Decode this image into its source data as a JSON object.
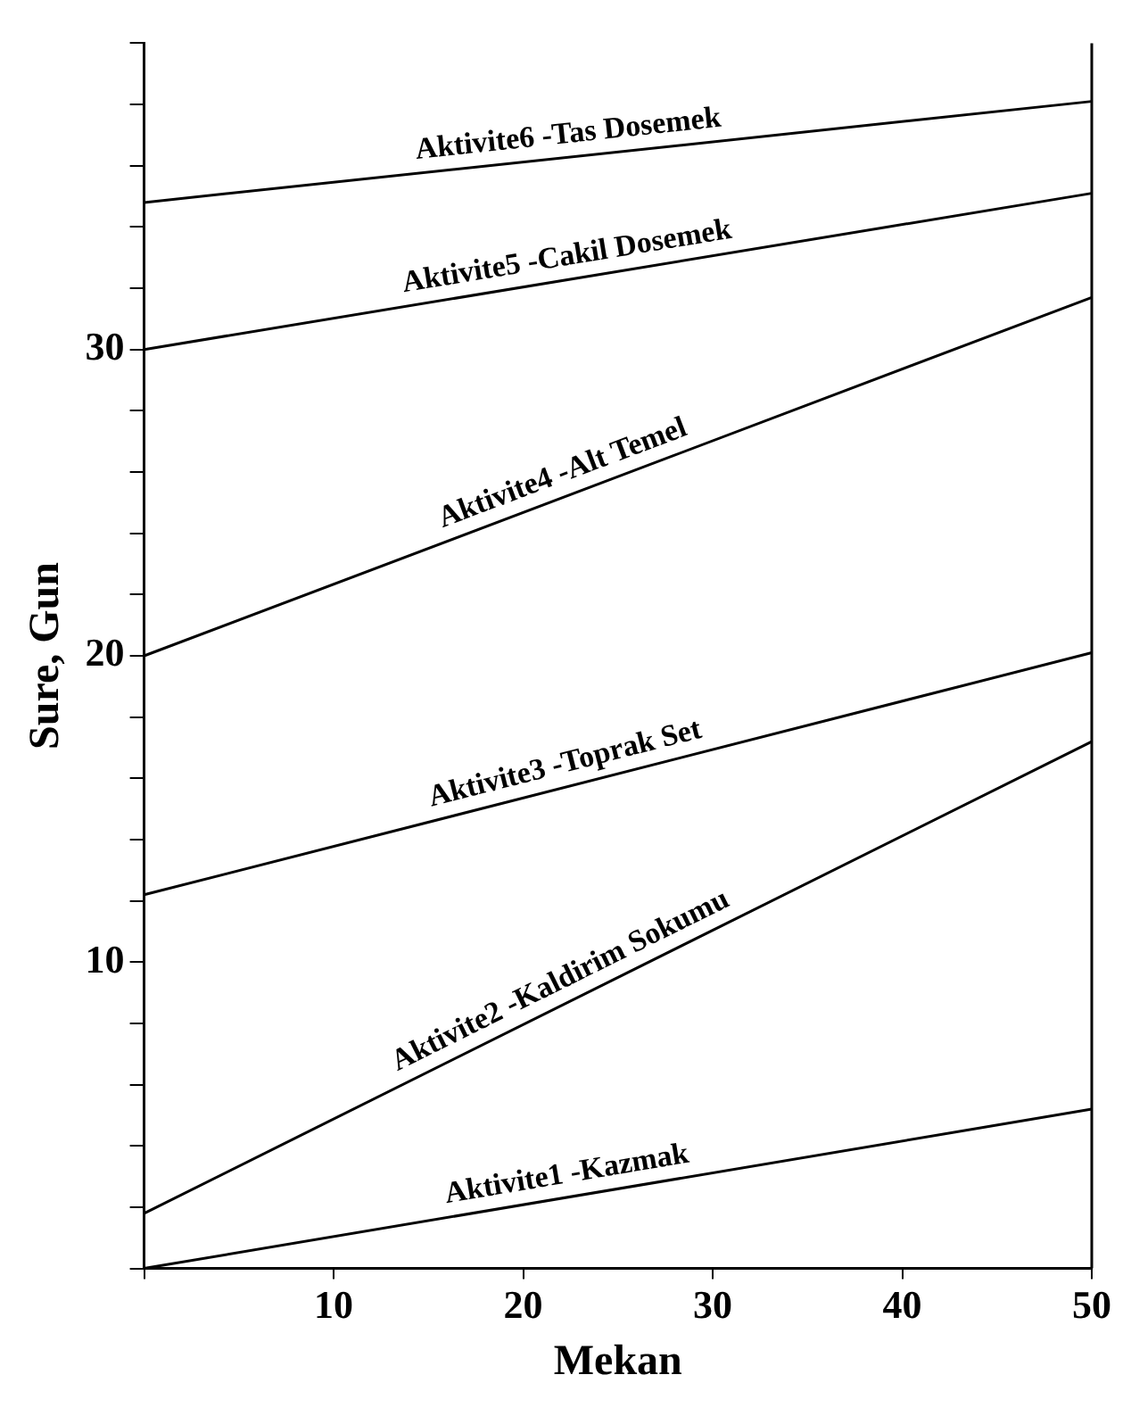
{
  "chart_data": {
    "type": "line",
    "xlabel": "Mekan",
    "ylabel": "Sure, Gun",
    "xlim": [
      0,
      50
    ],
    "xticks": [
      {
        "value": 0,
        "label": null
      },
      10,
      20,
      30,
      40,
      50
    ],
    "ylim": [
      0,
      40
    ],
    "yticks": [
      {
        "value": 0,
        "label": null
      },
      {
        "value": 2,
        "label": null
      },
      {
        "value": 4,
        "label": null
      },
      {
        "value": 6,
        "label": null
      },
      {
        "value": 8,
        "label": null
      },
      10,
      {
        "value": 12,
        "label": null
      },
      {
        "value": 14,
        "label": null
      },
      {
        "value": 16,
        "label": null
      },
      {
        "value": 18,
        "label": null
      },
      20,
      {
        "value": 22,
        "label": null
      },
      {
        "value": 24,
        "label": null
      },
      {
        "value": 26,
        "label": null
      },
      {
        "value": 28,
        "label": null
      },
      30,
      {
        "value": 32,
        "label": null
      },
      {
        "value": 34,
        "label": null
      },
      {
        "value": 36,
        "label": null
      },
      {
        "value": 38,
        "label": null
      },
      {
        "value": 40,
        "label": null
      }
    ],
    "grid": false,
    "legend": false,
    "marker": "none",
    "line_style": "solid",
    "x": [
      0,
      50
    ],
    "series": [
      {
        "color": "#000000",
        "values": [
          0,
          5.2
        ]
      },
      {
        "color": "#000000",
        "values": [
          1.8,
          17.2
        ]
      },
      {
        "color": "#000000",
        "values": [
          12.2,
          20.1
        ]
      },
      {
        "color": "#000000",
        "values": [
          20,
          31.7
        ]
      },
      {
        "color": "#000000",
        "values": [
          30,
          35.1
        ]
      },
      {
        "color": "#000000",
        "values": [
          34.8,
          38.1
        ]
      }
    ],
    "annotations": [
      "Aktivite1 -Kazmak",
      "Aktivite2 -Kaldirim Sokumu",
      "Aktivite3 -Toprak Set",
      "Aktivite4 -Alt Temel",
      "Aktivite5 -Cakil Dosemek",
      "Aktivite6 -Tas Dosemek"
    ]
  }
}
